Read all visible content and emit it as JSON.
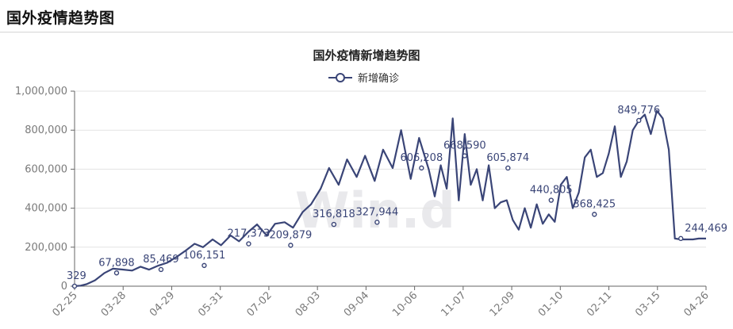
{
  "page": {
    "title": "国外疫情趋势图"
  },
  "colors": {
    "series": "#3a4577",
    "grid": "#e3e3e3",
    "axis": "#666666",
    "tick_text": "#7a7a7a"
  },
  "chart_data": {
    "type": "line",
    "title": "国外疫情新增趋势图",
    "legend": {
      "position": "top-center",
      "entries": [
        "新增确诊"
      ]
    },
    "xlabel": "",
    "ylabel": "",
    "ylim": [
      0,
      1000000
    ],
    "grid": true,
    "y_ticks": [
      "0",
      "200,000",
      "400,000",
      "600,000",
      "800,000",
      "1,000,000"
    ],
    "x_ticks": [
      "02-25",
      "03-28",
      "04-29",
      "05-31",
      "07-02",
      "08-03",
      "09-04",
      "10-06",
      "11-07",
      "12-09",
      "01-10",
      "02-11",
      "03-15",
      "04-26"
    ],
    "series": [
      {
        "name": "新增确诊",
        "x": [
          0,
          5,
          10,
          17,
          25,
          32,
          40,
          48,
          55,
          62,
          70,
          77,
          85,
          92,
          100,
          107,
          115,
          122,
          130,
          137,
          145,
          152,
          160,
          167,
          175,
          182,
          190,
          197,
          205,
          212,
          220,
          227,
          235,
          242,
          250,
          257,
          265,
          272,
          280,
          287,
          295,
          300,
          305,
          310,
          315,
          320,
          325,
          330,
          335,
          340,
          345,
          350,
          355,
          360,
          365,
          370,
          375,
          380,
          385,
          390,
          395,
          400,
          405,
          410,
          415,
          420,
          425,
          430,
          435,
          440,
          445,
          450,
          455,
          460,
          465,
          470,
          475,
          480,
          485,
          490,
          495,
          500,
          505,
          510,
          515,
          520,
          523,
          526
        ],
        "values": [
          329,
          3000,
          10000,
          30000,
          67898,
          90000,
          85469,
          80000,
          100000,
          85000,
          106151,
          120000,
          150000,
          180000,
          217373,
          200000,
          240000,
          209879,
          260000,
          230000,
          280000,
          316818,
          260000,
          320000,
          327944,
          300000,
          380000,
          420000,
          500000,
          606208,
          520000,
          650000,
          560000,
          668590,
          540000,
          700000,
          605874,
          800000,
          550000,
          760000,
          600000,
          460000,
          620000,
          500000,
          860000,
          440000,
          780000,
          520000,
          600000,
          440000,
          620000,
          400000,
          430000,
          440805,
          340000,
          290000,
          400000,
          300000,
          420000,
          320000,
          368425,
          330000,
          520000,
          560000,
          400000,
          480000,
          660000,
          700000,
          560000,
          580000,
          680000,
          820000,
          560000,
          640000,
          800000,
          849776,
          880000,
          780000,
          900000,
          860000,
          700000,
          244469,
          240000,
          240000,
          240000,
          244469,
          244469,
          244469
        ],
        "labels": [
          {
            "x": 0,
            "value": 329,
            "text": "329"
          },
          {
            "x": 35,
            "value": 67898,
            "text": "67,898"
          },
          {
            "x": 72,
            "value": 85469,
            "text": "85,469"
          },
          {
            "x": 108,
            "value": 106151,
            "text": "106,151"
          },
          {
            "x": 145,
            "value": 217373,
            "text": "217,373"
          },
          {
            "x": 180,
            "value": 209879,
            "text": "209,879"
          },
          {
            "x": 216,
            "value": 316818,
            "text": "316,818"
          },
          {
            "x": 252,
            "value": 327944,
            "text": "327,944"
          },
          {
            "x": 289,
            "value": 606208,
            "text": "606,208"
          },
          {
            "x": 325,
            "value": 668590,
            "text": "668,590"
          },
          {
            "x": 361,
            "value": 605874,
            "text": "605,874"
          },
          {
            "x": 397,
            "value": 440805,
            "text": "440,805"
          },
          {
            "x": 433,
            "value": 368425,
            "text": "368,425"
          },
          {
            "x": 470,
            "value": 849776,
            "text": "849,776"
          },
          {
            "x": 505,
            "value": 244469,
            "text": "244,469"
          }
        ]
      }
    ]
  }
}
